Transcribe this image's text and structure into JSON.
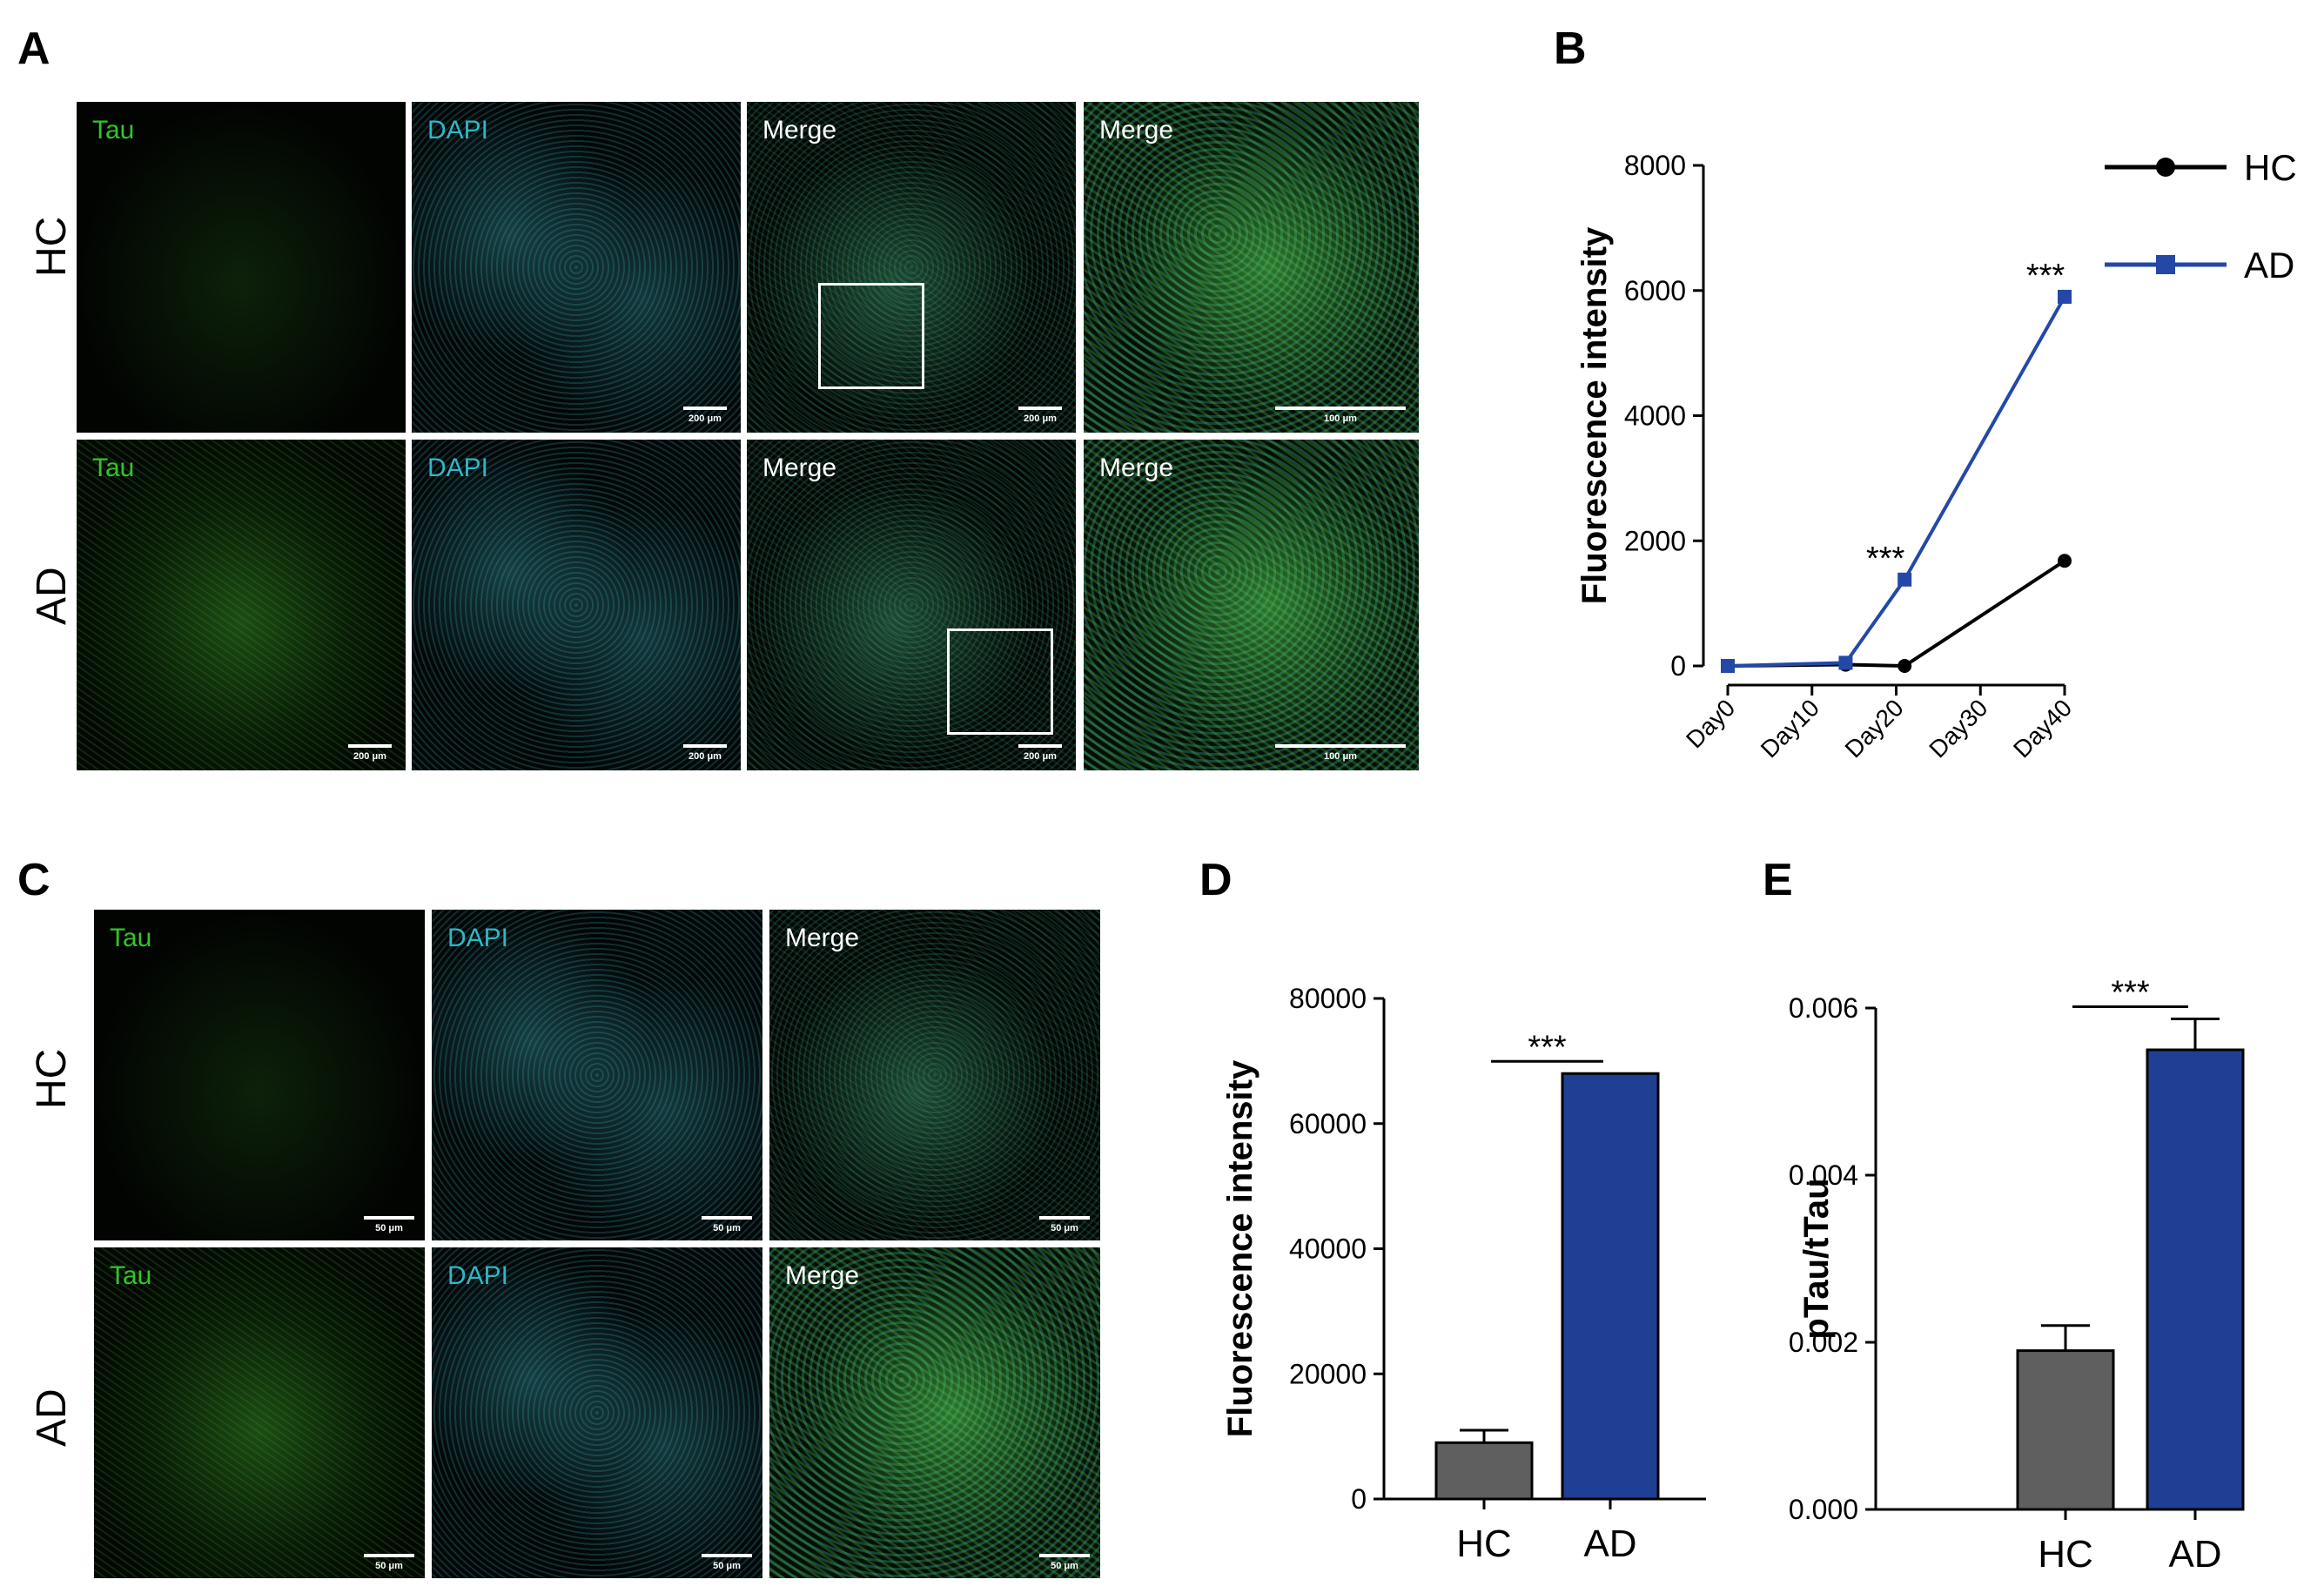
{
  "panel_letters": [
    "A",
    "B",
    "C",
    "D",
    "E"
  ],
  "row_labels": [
    "HC",
    "AD"
  ],
  "channel_labels": {
    "tau": "Tau",
    "dapi": "DAPI",
    "merge": "Merge"
  },
  "channel_colors": {
    "tau": "#35c52a",
    "dapi": "#2fb7c5",
    "merge": "#ffffff"
  },
  "scale_bars": {
    "s200": "200 μm",
    "s100": "100 μm",
    "s50": "50 μm"
  },
  "colors": {
    "hc_line": "#000000",
    "ad_line": "#2348a8",
    "hc_bar": "#5f5f5f",
    "ad_bar": "#1f3f94"
  },
  "chart_data": [
    {
      "panel": "B",
      "type": "line",
      "x": [
        "Day0",
        "Day10",
        "Day20",
        "Day30",
        "Day40"
      ],
      "xlim": [
        0,
        40
      ],
      "ylabel": "Fluorescence intensity",
      "ylim": [
        0,
        8000
      ],
      "yticks": [
        "0",
        "2000",
        "4000",
        "6000",
        "8000"
      ],
      "legend": "top-right",
      "series": [
        {
          "name": "HC",
          "marker": "circle",
          "points": [
            [
              0,
              0
            ],
            [
              14,
              20
            ],
            [
              21,
              0
            ],
            [
              40,
              1680
            ]
          ]
        },
        {
          "name": "AD",
          "marker": "square",
          "points": [
            [
              0,
              0
            ],
            [
              14,
              50
            ],
            [
              21,
              1380
            ],
            [
              40,
              5900
            ]
          ]
        }
      ],
      "annotations": [
        {
          "text": "***",
          "x": 21,
          "y": 1380
        },
        {
          "text": "***",
          "x": 40,
          "y": 5900
        }
      ]
    },
    {
      "panel": "D",
      "type": "bar",
      "categories": [
        "HC",
        "AD"
      ],
      "values": [
        9000,
        68000
      ],
      "errors": [
        2000,
        0
      ],
      "ylabel": "Fluorescence intensity",
      "ylim": [
        0,
        80000
      ],
      "yticks": [
        "0",
        "20000",
        "40000",
        "60000",
        "80000"
      ],
      "significance": "***"
    },
    {
      "panel": "E",
      "type": "bar",
      "categories": [
        "HC",
        "AD"
      ],
      "values": [
        0.0019,
        0.0055
      ],
      "errors": [
        0.0003,
        0.00037
      ],
      "ylabel": "pTau/tTau",
      "ylim": [
        0,
        0.006
      ],
      "yticks": [
        "0.000",
        "0.002",
        "0.004",
        "0.006"
      ],
      "significance": "***"
    }
  ]
}
